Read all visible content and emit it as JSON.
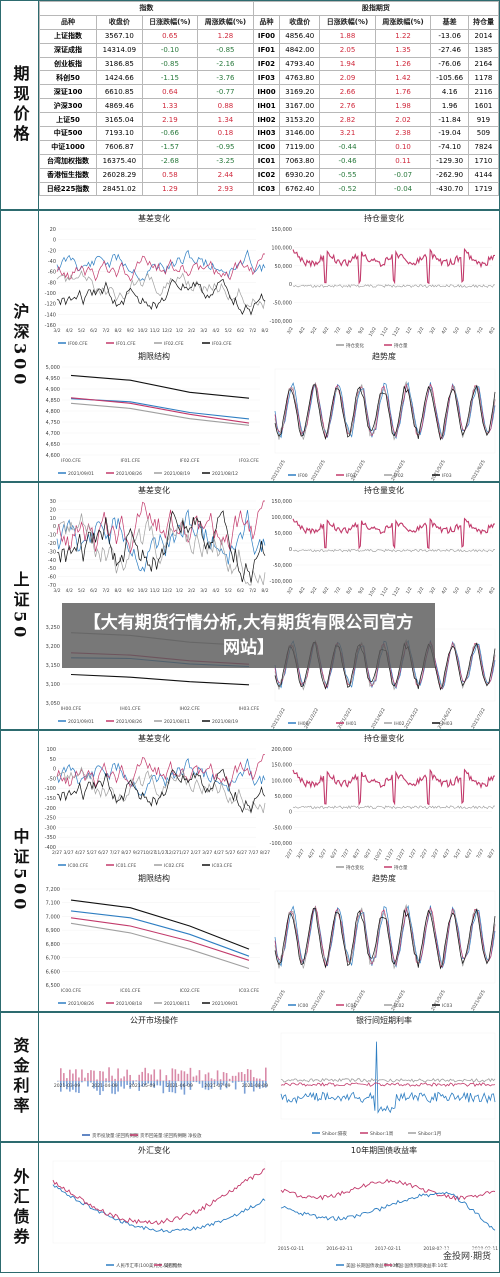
{
  "sections": {
    "prices": "期现价格",
    "hs300": "沪深300",
    "sz50": "上证50",
    "zz500": "中证500",
    "rates": "资金利率",
    "fx": "外汇债券"
  },
  "price_table": {
    "group_index": "指数",
    "group_futures": "股指期货",
    "headers": [
      "品种",
      "收盘价",
      "日涨跌幅(%)",
      "周涨跌幅(%)",
      "品种",
      "收盘价",
      "日涨跌幅(%)",
      "周涨跌幅(%)",
      "基差",
      "持仓量"
    ],
    "rows": [
      [
        "上证指数",
        "3567.10",
        "0.65",
        "1.28",
        "IF00",
        "4856.40",
        "1.88",
        "1.22",
        "-13.06",
        "2014"
      ],
      [
        "深证成指",
        "14314.09",
        "-0.10",
        "-0.85",
        "IF01",
        "4842.00",
        "2.05",
        "1.35",
        "-27.46",
        "1385"
      ],
      [
        "创业板指",
        "3186.85",
        "-0.85",
        "-2.16",
        "IF02",
        "4793.40",
        "1.94",
        "1.26",
        "-76.06",
        "2164"
      ],
      [
        "科创50",
        "1424.66",
        "-1.15",
        "-3.76",
        "IF03",
        "4763.80",
        "2.09",
        "1.42",
        "-105.66",
        "1178"
      ],
      [
        "深证100",
        "6610.85",
        "0.64",
        "-0.77",
        "IH00",
        "3169.20",
        "2.66",
        "1.76",
        "4.16",
        "2116"
      ],
      [
        "沪深300",
        "4869.46",
        "1.33",
        "0.88",
        "IH01",
        "3167.00",
        "2.76",
        "1.98",
        "1.96",
        "1601"
      ],
      [
        "上证50",
        "3165.04",
        "2.19",
        "1.34",
        "IH02",
        "3153.20",
        "2.82",
        "2.02",
        "-11.84",
        "919"
      ],
      [
        "中证500",
        "7193.10",
        "-0.66",
        "0.18",
        "IH03",
        "3146.00",
        "3.21",
        "2.38",
        "-19.04",
        "509"
      ],
      [
        "中证1000",
        "7606.87",
        "-1.57",
        "-0.95",
        "IC00",
        "7119.00",
        "-0.44",
        "0.10",
        "-74.10",
        "7824"
      ],
      [
        "台湾加权指数",
        "16375.40",
        "-2.68",
        "-3.25",
        "IC01",
        "7063.80",
        "-0.46",
        "0.11",
        "-129.30",
        "1710"
      ],
      [
        "香港恒生指数",
        "26028.29",
        "0.58",
        "2.44",
        "IC02",
        "6930.20",
        "-0.55",
        "-0.07",
        "-262.90",
        "4144"
      ],
      [
        "日经225指数",
        "28451.02",
        "1.29",
        "2.93",
        "IC03",
        "6762.40",
        "-0.52",
        "-0.04",
        "-430.70",
        "1719"
      ]
    ]
  },
  "hs300": {
    "basis": {
      "title": "基差变化",
      "yticks": [
        "20",
        "0",
        "-20",
        "-40",
        "-60",
        "-80",
        "-100",
        "-120",
        "-140",
        "-160"
      ],
      "xticks": [
        "3/2",
        "4/2",
        "5/2",
        "6/2",
        "7/2",
        "8/2",
        "9/2",
        "10/2",
        "11/2",
        "12/2",
        "1/2",
        "2/2",
        "3/2",
        "4/2",
        "5/2",
        "6/2",
        "7/2",
        "8/2"
      ],
      "legend": [
        "IF00.CFE",
        "IF01.CFE",
        "IF02.CFE",
        "IF03.CFE"
      ]
    },
    "oi": {
      "title": "持仓量变化",
      "yticks": [
        "150,000",
        "100,000",
        "50,000",
        "0",
        "-50,000",
        "-100,000"
      ],
      "xticks": [
        "3/2",
        "4/2",
        "5/2",
        "6/2",
        "7/2",
        "8/2",
        "9/2",
        "10/2",
        "11/2",
        "12/2",
        "1/2",
        "2/2",
        "3/2",
        "4/2",
        "5/2",
        "6/2",
        "7/2",
        "8/2"
      ],
      "legend": [
        "持仓变化",
        "持仓量"
      ]
    },
    "term": {
      "title": "期限结构",
      "yticks": [
        "5,000",
        "4,950",
        "4,900",
        "4,850",
        "4,800",
        "4,750",
        "4,700",
        "4,650",
        "4,600"
      ],
      "xticks": [
        "IF00.CFE",
        "IF01.CFE",
        "IF02.CFE",
        "IF03.CFE"
      ],
      "legend": [
        "2021/09/01",
        "2021/08/26",
        "2021/08/19",
        "2021/08/12"
      ]
    },
    "trend": {
      "title": "趋势度",
      "xticks": [
        "2021/1/25",
        "2021/2/25",
        "2021/3/25",
        "2021/4/25",
        "2021/5/25",
        "2021/6/25"
      ],
      "legend": [
        "IF00",
        "IF01",
        "IF02",
        "IF03"
      ]
    }
  },
  "sz50": {
    "basis": {
      "title": "基差变化",
      "yticks": [
        "30",
        "20",
        "10",
        "0",
        "-10",
        "-20",
        "-30",
        "-40",
        "-50",
        "-60",
        "-70"
      ],
      "xticks": [
        "3/2",
        "4/2",
        "5/2",
        "6/2",
        "7/2",
        "8/2",
        "9/2",
        "10/2",
        "11/2",
        "12/2",
        "1/2",
        "2/2",
        "3/2",
        "4/2",
        "5/2",
        "6/2",
        "7/2",
        "8/2"
      ]
    },
    "oi": {
      "title": "持仓量变化",
      "yticks": [
        "150,000",
        "100,000",
        "50,000",
        "0",
        "-50,000",
        "-100,000"
      ],
      "xticks": [
        "3/2",
        "4/2",
        "5/2",
        "6/2",
        "7/2",
        "8/2",
        "9/2",
        "10/2",
        "11/2",
        "12/2",
        "1/2",
        "2/2",
        "3/2",
        "4/2",
        "5/2",
        "6/2",
        "7/2",
        "8/2"
      ]
    },
    "term": {
      "yticks": [
        "3,250",
        "3,200",
        "3,150",
        "3,100",
        "3,050"
      ],
      "xticks": [
        "IH00.CFE",
        "IH01.CFE",
        "IH02.CFE",
        "IH03.CFE"
      ],
      "legend": [
        "2021/09/01",
        "2021/08/26",
        "2021/08/11",
        "2021/08/19"
      ]
    },
    "trend": {
      "xticks": [
        "2021/1/22",
        "2021/2/22",
        "2021/3/22",
        "2021/4/22",
        "2021/5/22",
        "2021/6/22",
        "2021/7/22"
      ],
      "legend": [
        "IH00",
        "IH01",
        "IH02",
        "IH03"
      ]
    }
  },
  "zz500": {
    "basis": {
      "title": "基差变化",
      "yticks": [
        "100",
        "50",
        "0",
        "-50",
        "-100",
        "-150",
        "-200",
        "-250",
        "-300",
        "-350",
        "-400"
      ],
      "xticks": [
        "2/27",
        "3/27",
        "4/27",
        "5/27",
        "6/27",
        "7/27",
        "8/27",
        "9/27",
        "10/27",
        "11/27",
        "12/27",
        "1/27",
        "2/27",
        "3/27",
        "4/27",
        "5/27",
        "6/27",
        "7/27",
        "8/27"
      ],
      "legend": [
        "IC00.CFE",
        "IC01.CFE",
        "IC02.CFE",
        "IC03.CFE"
      ]
    },
    "oi": {
      "title": "持仓量变化",
      "yticks": [
        "200,000",
        "150,000",
        "100,000",
        "50,000",
        "0",
        "-50,000",
        "-100,000"
      ],
      "xticks": [
        "2/27",
        "3/27",
        "4/27",
        "5/27",
        "6/27",
        "7/27",
        "8/27",
        "9/27",
        "10/27",
        "11/27",
        "12/27",
        "1/27",
        "2/27",
        "3/27",
        "4/27",
        "5/27",
        "6/27",
        "7/27",
        "8/27"
      ],
      "legend": [
        "持仓变化",
        "持仓量"
      ]
    },
    "term": {
      "title": "期限结构",
      "yticks": [
        "7,200",
        "7,100",
        "7,000",
        "6,900",
        "6,800",
        "6,700",
        "6,600",
        "6,500"
      ],
      "xticks": [
        "IC00.CFE",
        "IC01.CFE",
        "IC02.CFE",
        "IC03.CFE"
      ],
      "legend": [
        "2021/08/26",
        "2021/08/18",
        "2021/08/11",
        "2021/09/01"
      ]
    },
    "trend": {
      "title": "趋势度",
      "xticks": [
        "2021/1/25",
        "2021/2/25",
        "2021/3/25",
        "2021/4/25",
        "2021/5/25",
        "2021/6/25"
      ],
      "legend": [
        "IC00",
        "IC01",
        "IC02",
        "IC03"
      ]
    }
  },
  "rates": {
    "omo": {
      "title": "公开市场操作",
      "xticks": [
        "2021-03-09",
        "2021-04-09",
        "2021-05-09",
        "2021-06-09",
        "2021-07-09",
        "2021-08-09"
      ],
      "legend": [
        "货币投放量:逆回购到期",
        "货币回笼量:逆回购到期",
        "净投放"
      ]
    },
    "shibor": {
      "title": "银行间短期利率",
      "legend": [
        "Shibor:隔夜",
        "Shibor:1周",
        "Shibor:1月"
      ]
    }
  },
  "fx": {
    "fx_rate": {
      "title": "外汇变化",
      "legend": [
        "人民币汇率(100美元兑人民币)",
        "美元指数"
      ]
    },
    "bond": {
      "title": "10年期国债收益率",
      "xticks": [
        "2015-02-11",
        "2016-02-11",
        "2017-02-11",
        "2018-02-11",
        "2019-02-11"
      ],
      "legend": [
        "美国:长期国债收益率:10年",
        "中国:国债到期收益率:10年"
      ]
    }
  },
  "overlay_title": "【大有期货行情分析,大有期货有限公司官方网站】",
  "watermark": "金投网·期货",
  "chart_data": [
    {
      "type": "table",
      "title": "期现价格",
      "columns": [
        "品种",
        "收盘价",
        "日涨跌幅(%)",
        "周涨跌幅(%)",
        "品种",
        "收盘价",
        "日涨跌幅(%)",
        "周涨跌幅(%)",
        "基差",
        "持仓量"
      ]
    },
    {
      "type": "line",
      "title": "期限结构",
      "categories": [
        "IF00.CFE",
        "IF01.CFE",
        "IF02.CFE",
        "IF03.CFE"
      ],
      "series": [
        {
          "name": "2021/09/01",
          "values": [
            4856,
            4842,
            4793,
            4764
          ]
        },
        {
          "name": "2021/08/26",
          "values": [
            4860,
            4835,
            4785,
            4745
          ]
        },
        {
          "name": "2021/08/19",
          "values": [
            4835,
            4812,
            4765,
            4735
          ]
        },
        {
          "name": "2021/08/12",
          "values": [
            4962,
            4940,
            4885,
            4858
          ]
        }
      ],
      "ylim": [
        4600,
        5000
      ]
    },
    {
      "type": "line",
      "title": "期限结构",
      "categories": [
        "IH00.CFE",
        "IH01.CFE",
        "IH02.CFE",
        "IH03.CFE"
      ],
      "series": [
        {
          "name": "2021/09/01",
          "values": [
            3169,
            3167,
            3153,
            3146
          ]
        },
        {
          "name": "2021/08/26",
          "values": [
            3182,
            3176,
            3161,
            3152
          ]
        },
        {
          "name": "2021/08/11",
          "values": [
            3235,
            3228,
            3210,
            3201
          ]
        },
        {
          "name": "2021/08/19",
          "values": [
            3125,
            3118,
            3106,
            3098
          ]
        }
      ],
      "ylim": [
        3050,
        3250
      ]
    },
    {
      "type": "line",
      "title": "期限结构",
      "categories": [
        "IC00.CFE",
        "IC01.CFE",
        "IC02.CFE",
        "IC03.CFE"
      ],
      "series": [
        {
          "name": "2021/08/26",
          "values": [
            7040,
            6990,
            6870,
            6710
          ]
        },
        {
          "name": "2021/08/18",
          "values": [
            6990,
            6930,
            6820,
            6680
          ]
        },
        {
          "name": "2021/08/11",
          "values": [
            6950,
            6880,
            6760,
            6620
          ]
        },
        {
          "name": "2021/09/01",
          "values": [
            7119,
            7064,
            6930,
            6762
          ]
        }
      ],
      "ylim": [
        6500,
        7200
      ]
    }
  ]
}
